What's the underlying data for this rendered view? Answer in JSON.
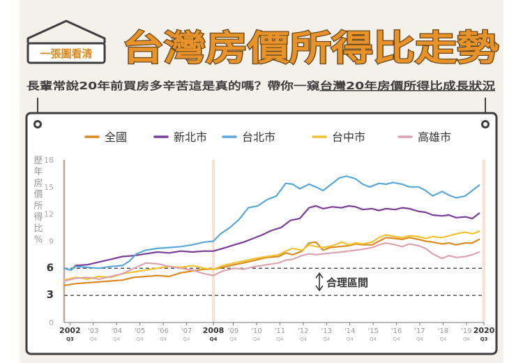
{
  "header": {
    "badge": "一張圖看清",
    "title": "台灣房價所得比走勢",
    "subtitle_plain": "長輩常說20年前買房多辛苦這是真的嗎？帶你一窺",
    "subtitle_underlined": "台灣20年房價所得比成長狀況"
  },
  "colors": {
    "background": "#f4f1eb",
    "title_orange": "#e8932a",
    "frame": "#3d3d3d",
    "national": "#d98a22",
    "new_taipei": "#7a3d96",
    "taipei": "#5aa7d6",
    "taichung": "#f2c230",
    "kaohsiung": "#dba3b0"
  },
  "chart_data": {
    "type": "line",
    "ylabel": "歷年房價所得比%",
    "ylabel_chars": [
      "歷",
      "年",
      "房",
      "價",
      "所",
      "得",
      "比",
      "%"
    ],
    "ylim": [
      0,
      18
    ],
    "yticks": [
      0,
      3,
      6,
      9,
      12,
      15,
      18
    ],
    "yticks_bold": [
      3,
      6
    ],
    "reference_lines": [
      3,
      6
    ],
    "annotation": "合理區間",
    "xlim": [
      2002.5,
      2020.5
    ],
    "x_ticks": [
      {
        "x": 2002.75,
        "label": "2002",
        "sub": "Q3",
        "bold": true
      },
      {
        "x": 2003.75,
        "label": "'03",
        "sub": "Q4",
        "bold": false
      },
      {
        "x": 2004.75,
        "label": "'04",
        "sub": "Q4",
        "bold": false
      },
      {
        "x": 2005.75,
        "label": "'05",
        "sub": "Q4",
        "bold": false
      },
      {
        "x": 2006.75,
        "label": "'06",
        "sub": "Q4",
        "bold": false
      },
      {
        "x": 2007.75,
        "label": "'07",
        "sub": "Q4",
        "bold": false
      },
      {
        "x": 2008.9,
        "label": "2008",
        "sub": "Q4",
        "bold": true
      },
      {
        "x": 2009.75,
        "label": "'09",
        "sub": "Q4",
        "bold": false
      },
      {
        "x": 2010.75,
        "label": "'10",
        "sub": "Q4",
        "bold": false
      },
      {
        "x": 2011.75,
        "label": "'11",
        "sub": "Q4",
        "bold": false
      },
      {
        "x": 2012.75,
        "label": "'12",
        "sub": "Q4",
        "bold": false
      },
      {
        "x": 2013.75,
        "label": "'13",
        "sub": "Q4",
        "bold": false
      },
      {
        "x": 2014.75,
        "label": "'14",
        "sub": "Q4",
        "bold": false
      },
      {
        "x": 2015.75,
        "label": "'15",
        "sub": "Q4",
        "bold": false
      },
      {
        "x": 2016.75,
        "label": "'16",
        "sub": "Q4",
        "bold": false
      },
      {
        "x": 2017.75,
        "label": "'17",
        "sub": "Q4",
        "bold": false
      },
      {
        "x": 2018.75,
        "label": "'18",
        "sub": "Q4",
        "bold": false
      },
      {
        "x": 2019.75,
        "label": "'19",
        "sub": "Q4",
        "bold": false
      },
      {
        "x": 2020.5,
        "label": "2020",
        "sub": "Q3",
        "bold": true
      }
    ],
    "highlight_x": [
      2002.5,
      2008.9,
      2020.5
    ],
    "series": [
      {
        "name": "全國",
        "color_key": "national",
        "points": [
          [
            2002.5,
            4.1
          ],
          [
            2003.0,
            4.3
          ],
          [
            2003.5,
            4.4
          ],
          [
            2004.0,
            4.5
          ],
          [
            2004.5,
            4.6
          ],
          [
            2005.0,
            4.7
          ],
          [
            2005.5,
            5.0
          ],
          [
            2006.0,
            5.1
          ],
          [
            2006.5,
            5.2
          ],
          [
            2007.0,
            5.1
          ],
          [
            2007.5,
            5.5
          ],
          [
            2008.0,
            5.7
          ],
          [
            2008.5,
            5.9
          ],
          [
            2008.9,
            5.9
          ],
          [
            2009.3,
            6.1
          ],
          [
            2009.8,
            6.4
          ],
          [
            2010.2,
            6.6
          ],
          [
            2010.7,
            6.9
          ],
          [
            2011.2,
            7.2
          ],
          [
            2011.7,
            7.3
          ],
          [
            2012.0,
            7.7
          ],
          [
            2012.3,
            7.5
          ],
          [
            2012.7,
            7.9
          ],
          [
            2013.0,
            8.8
          ],
          [
            2013.3,
            8.9
          ],
          [
            2013.6,
            8.0
          ],
          [
            2013.9,
            8.3
          ],
          [
            2014.3,
            8.4
          ],
          [
            2014.7,
            8.5
          ],
          [
            2015.0,
            8.7
          ],
          [
            2015.3,
            8.6
          ],
          [
            2015.7,
            8.6
          ],
          [
            2016.0,
            9.0
          ],
          [
            2016.3,
            9.4
          ],
          [
            2016.7,
            9.3
          ],
          [
            2017.0,
            9.2
          ],
          [
            2017.3,
            9.4
          ],
          [
            2017.7,
            9.2
          ],
          [
            2018.0,
            9.0
          ],
          [
            2018.3,
            8.9
          ],
          [
            2018.7,
            8.7
          ],
          [
            2019.0,
            8.8
          ],
          [
            2019.3,
            8.6
          ],
          [
            2019.7,
            8.8
          ],
          [
            2020.0,
            8.8
          ],
          [
            2020.3,
            9.2
          ]
        ]
      },
      {
        "name": "新北市",
        "color_key": "new_taipei",
        "points": [
          [
            2002.5,
            6.0
          ],
          [
            2002.8,
            5.8
          ],
          [
            2003.0,
            6.3
          ],
          [
            2003.5,
            6.4
          ],
          [
            2004.0,
            6.7
          ],
          [
            2004.5,
            7.0
          ],
          [
            2005.0,
            7.3
          ],
          [
            2005.5,
            7.4
          ],
          [
            2006.0,
            7.6
          ],
          [
            2006.5,
            7.8
          ],
          [
            2007.0,
            7.7
          ],
          [
            2007.5,
            7.9
          ],
          [
            2008.0,
            7.8
          ],
          [
            2008.5,
            7.9
          ],
          [
            2008.9,
            7.9
          ],
          [
            2009.3,
            8.2
          ],
          [
            2009.8,
            8.6
          ],
          [
            2010.2,
            8.9
          ],
          [
            2010.6,
            9.3
          ],
          [
            2011.0,
            9.7
          ],
          [
            2011.4,
            10.2
          ],
          [
            2011.8,
            10.5
          ],
          [
            2012.2,
            11.3
          ],
          [
            2012.6,
            11.5
          ],
          [
            2013.0,
            12.7
          ],
          [
            2013.3,
            12.9
          ],
          [
            2013.6,
            12.6
          ],
          [
            2014.0,
            12.8
          ],
          [
            2014.4,
            12.7
          ],
          [
            2014.7,
            12.9
          ],
          [
            2015.0,
            12.8
          ],
          [
            2015.3,
            12.5
          ],
          [
            2015.7,
            12.6
          ],
          [
            2016.0,
            12.4
          ],
          [
            2016.3,
            12.6
          ],
          [
            2016.7,
            12.5
          ],
          [
            2017.0,
            12.7
          ],
          [
            2017.3,
            12.6
          ],
          [
            2017.7,
            12.3
          ],
          [
            2018.0,
            12.2
          ],
          [
            2018.3,
            11.9
          ],
          [
            2018.7,
            11.8
          ],
          [
            2019.0,
            11.9
          ],
          [
            2019.3,
            11.6
          ],
          [
            2019.7,
            11.7
          ],
          [
            2020.0,
            11.5
          ],
          [
            2020.3,
            12.1
          ]
        ]
      },
      {
        "name": "台北市",
        "color_key": "taipei",
        "points": [
          [
            2002.5,
            6.0
          ],
          [
            2002.8,
            5.8
          ],
          [
            2003.0,
            6.2
          ],
          [
            2003.5,
            6.1
          ],
          [
            2004.0,
            6.0
          ],
          [
            2004.5,
            6.2
          ],
          [
            2005.0,
            6.3
          ],
          [
            2005.3,
            6.8
          ],
          [
            2005.6,
            7.6
          ],
          [
            2006.0,
            8.0
          ],
          [
            2006.5,
            8.2
          ],
          [
            2007.0,
            8.3
          ],
          [
            2007.5,
            8.4
          ],
          [
            2008.0,
            8.6
          ],
          [
            2008.5,
            8.9
          ],
          [
            2008.9,
            9.0
          ],
          [
            2009.2,
            9.8
          ],
          [
            2009.6,
            10.5
          ],
          [
            2010.0,
            11.4
          ],
          [
            2010.4,
            12.7
          ],
          [
            2010.8,
            12.9
          ],
          [
            2011.2,
            13.6
          ],
          [
            2011.6,
            14.0
          ],
          [
            2012.0,
            15.4
          ],
          [
            2012.3,
            15.3
          ],
          [
            2012.6,
            14.8
          ],
          [
            2013.0,
            15.3
          ],
          [
            2013.3,
            15.0
          ],
          [
            2013.6,
            14.6
          ],
          [
            2014.0,
            15.4
          ],
          [
            2014.3,
            16.0
          ],
          [
            2014.6,
            16.2
          ],
          [
            2015.0,
            15.9
          ],
          [
            2015.3,
            15.3
          ],
          [
            2015.6,
            15.0
          ],
          [
            2016.0,
            15.4
          ],
          [
            2016.3,
            15.3
          ],
          [
            2016.6,
            15.5
          ],
          [
            2017.0,
            15.3
          ],
          [
            2017.3,
            15.0
          ],
          [
            2017.7,
            15.0
          ],
          [
            2018.0,
            14.6
          ],
          [
            2018.3,
            14.0
          ],
          [
            2018.7,
            14.5
          ],
          [
            2019.0,
            14.1
          ],
          [
            2019.3,
            13.8
          ],
          [
            2019.7,
            14.0
          ],
          [
            2020.0,
            14.6
          ],
          [
            2020.3,
            15.2
          ]
        ]
      },
      {
        "name": "台中市",
        "color_key": "taichung",
        "points": [
          [
            2002.5,
            4.7
          ],
          [
            2003.0,
            5.0
          ],
          [
            2003.5,
            4.8
          ],
          [
            2004.0,
            5.1
          ],
          [
            2004.5,
            5.0
          ],
          [
            2005.0,
            5.4
          ],
          [
            2005.5,
            5.6
          ],
          [
            2006.0,
            5.8
          ],
          [
            2006.5,
            6.0
          ],
          [
            2007.0,
            6.2
          ],
          [
            2007.5,
            6.1
          ],
          [
            2008.0,
            6.3
          ],
          [
            2008.5,
            6.0
          ],
          [
            2008.9,
            5.9
          ],
          [
            2009.3,
            6.3
          ],
          [
            2009.8,
            6.6
          ],
          [
            2010.2,
            6.8
          ],
          [
            2010.7,
            7.1
          ],
          [
            2011.2,
            7.3
          ],
          [
            2011.7,
            7.5
          ],
          [
            2012.0,
            7.9
          ],
          [
            2012.3,
            8.2
          ],
          [
            2012.7,
            8.0
          ],
          [
            2013.0,
            8.6
          ],
          [
            2013.3,
            8.4
          ],
          [
            2013.6,
            8.3
          ],
          [
            2014.0,
            8.5
          ],
          [
            2014.4,
            8.9
          ],
          [
            2014.7,
            8.6
          ],
          [
            2015.0,
            8.8
          ],
          [
            2015.3,
            8.7
          ],
          [
            2015.7,
            8.9
          ],
          [
            2016.0,
            9.4
          ],
          [
            2016.3,
            9.7
          ],
          [
            2016.7,
            9.5
          ],
          [
            2017.0,
            9.4
          ],
          [
            2017.3,
            9.6
          ],
          [
            2017.7,
            9.5
          ],
          [
            2018.0,
            9.3
          ],
          [
            2018.3,
            9.5
          ],
          [
            2018.7,
            9.4
          ],
          [
            2019.0,
            9.6
          ],
          [
            2019.3,
            9.8
          ],
          [
            2019.7,
            10.0
          ],
          [
            2020.0,
            9.8
          ],
          [
            2020.3,
            10.1
          ]
        ]
      },
      {
        "name": "高雄市",
        "color_key": "kaohsiung",
        "points": [
          [
            2002.5,
            4.6
          ],
          [
            2003.0,
            4.9
          ],
          [
            2003.5,
            5.0
          ],
          [
            2004.0,
            4.8
          ],
          [
            2004.5,
            5.1
          ],
          [
            2005.0,
            5.4
          ],
          [
            2005.5,
            6.0
          ],
          [
            2006.0,
            6.6
          ],
          [
            2006.5,
            6.5
          ],
          [
            2007.0,
            6.2
          ],
          [
            2007.5,
            6.0
          ],
          [
            2008.0,
            5.8
          ],
          [
            2008.5,
            5.4
          ],
          [
            2008.9,
            5.2
          ],
          [
            2009.3,
            5.7
          ],
          [
            2009.8,
            6.0
          ],
          [
            2010.2,
            5.9
          ],
          [
            2010.7,
            6.2
          ],
          [
            2011.2,
            6.4
          ],
          [
            2011.7,
            6.6
          ],
          [
            2012.0,
            6.9
          ],
          [
            2012.3,
            7.0
          ],
          [
            2012.7,
            7.4
          ],
          [
            2013.0,
            7.6
          ],
          [
            2013.3,
            7.5
          ],
          [
            2013.6,
            7.6
          ],
          [
            2014.0,
            7.7
          ],
          [
            2014.4,
            7.8
          ],
          [
            2014.7,
            7.9
          ],
          [
            2015.0,
            8.0
          ],
          [
            2015.3,
            8.1
          ],
          [
            2015.7,
            8.3
          ],
          [
            2016.0,
            8.6
          ],
          [
            2016.3,
            8.8
          ],
          [
            2016.7,
            8.6
          ],
          [
            2017.0,
            8.4
          ],
          [
            2017.3,
            8.7
          ],
          [
            2017.7,
            8.5
          ],
          [
            2018.0,
            8.2
          ],
          [
            2018.3,
            7.6
          ],
          [
            2018.7,
            7.1
          ],
          [
            2019.0,
            7.4
          ],
          [
            2019.3,
            7.2
          ],
          [
            2019.7,
            7.3
          ],
          [
            2020.0,
            7.5
          ],
          [
            2020.3,
            7.8
          ]
        ]
      }
    ]
  }
}
